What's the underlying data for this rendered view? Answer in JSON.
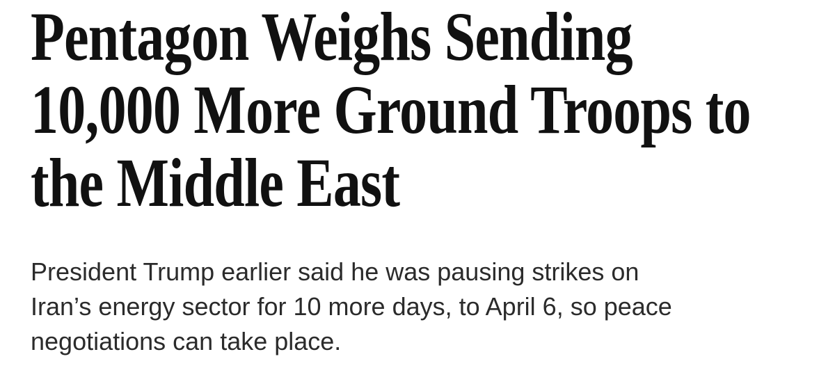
{
  "headline": {
    "lines": [
      "Pentagon Weighs Sending",
      "10,000 More Ground Troops to",
      "the Middle East"
    ]
  },
  "dek": {
    "lines": [
      "President Trump earlier said he was pausing strikes on",
      "Iran’s energy sector for 10 more days, to April 6, so peace",
      "negotiations can take place."
    ]
  }
}
